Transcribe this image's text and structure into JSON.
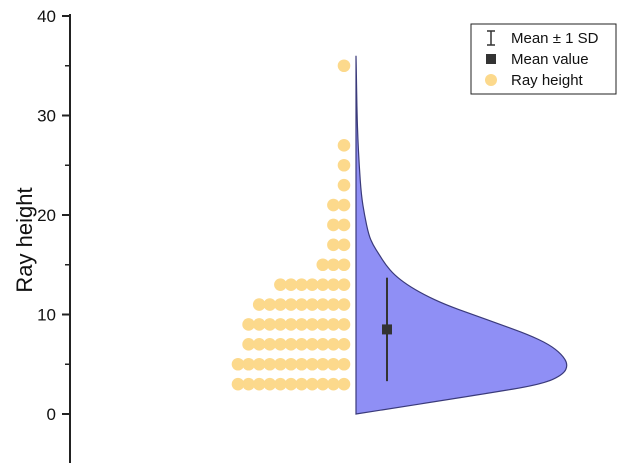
{
  "chart_data": {
    "type": "half-violin with dot histogram",
    "xlabel": "",
    "ylabel": "Ray height",
    "ylim": [
      0,
      40
    ],
    "yticks": [
      0,
      10,
      20,
      30,
      40
    ],
    "grid": false,
    "legend_position": "top-right",
    "legend": [
      {
        "label": "Mean ± 1 SD",
        "marker": "errorbar"
      },
      {
        "label": "Mean value",
        "marker": "square"
      },
      {
        "label": "Ray height",
        "marker": "circle"
      }
    ],
    "colors": {
      "violin_fill": "#8f8ff5",
      "violin_edge": "#3a3a7a",
      "dots": "#fcd98c",
      "mean": "#333333",
      "axis": "#222222"
    },
    "mean": 8.5,
    "sd_low": 3.3,
    "sd_high": 13.7,
    "dot_histogram": [
      {
        "y": 3,
        "count": 11
      },
      {
        "y": 5,
        "count": 11
      },
      {
        "y": 7,
        "count": 10
      },
      {
        "y": 9,
        "count": 10
      },
      {
        "y": 11,
        "count": 9
      },
      {
        "y": 13,
        "count": 7
      },
      {
        "y": 15,
        "count": 3
      },
      {
        "y": 17,
        "count": 2
      },
      {
        "y": 19,
        "count": 2
      },
      {
        "y": 21,
        "count": 2
      },
      {
        "y": 23,
        "count": 1
      },
      {
        "y": 25,
        "count": 1
      },
      {
        "y": 27,
        "count": 1
      },
      {
        "y": 35,
        "count": 1
      }
    ],
    "density": [
      {
        "y": 0,
        "d": 0.0
      },
      {
        "y": 2,
        "d": 0.6
      },
      {
        "y": 3,
        "d": 0.88
      },
      {
        "y": 4,
        "d": 0.98
      },
      {
        "y": 5,
        "d": 1.0
      },
      {
        "y": 6,
        "d": 0.97
      },
      {
        "y": 7,
        "d": 0.91
      },
      {
        "y": 8,
        "d": 0.81
      },
      {
        "y": 9,
        "d": 0.68
      },
      {
        "y": 10,
        "d": 0.55
      },
      {
        "y": 11,
        "d": 0.42
      },
      {
        "y": 12,
        "d": 0.32
      },
      {
        "y": 13,
        "d": 0.24
      },
      {
        "y": 14,
        "d": 0.18
      },
      {
        "y": 15,
        "d": 0.14
      },
      {
        "y": 16,
        "d": 0.11
      },
      {
        "y": 17,
        "d": 0.08
      },
      {
        "y": 18,
        "d": 0.06
      },
      {
        "y": 20,
        "d": 0.04
      },
      {
        "y": 22,
        "d": 0.025
      },
      {
        "y": 25,
        "d": 0.015
      },
      {
        "y": 28,
        "d": 0.008
      },
      {
        "y": 31,
        "d": 0.004
      },
      {
        "y": 34,
        "d": 0.002
      },
      {
        "y": 36,
        "d": 0.0
      }
    ]
  }
}
